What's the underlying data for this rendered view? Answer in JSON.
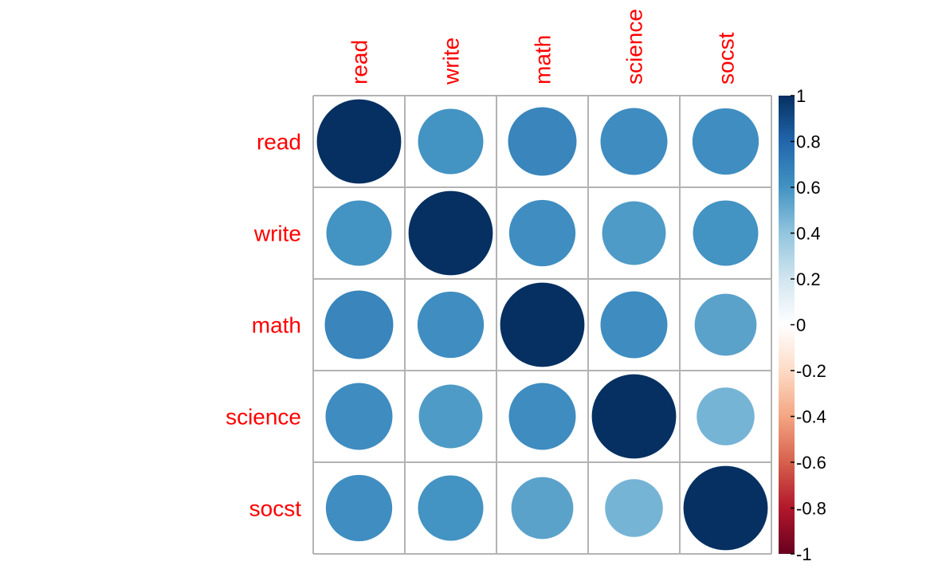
{
  "chart_data": {
    "type": "heatmap",
    "variables": [
      "read",
      "write",
      "math",
      "science",
      "socst"
    ],
    "matrix": [
      [
        1.0,
        0.6,
        0.66,
        0.63,
        0.62
      ],
      [
        0.6,
        1.0,
        0.62,
        0.57,
        0.6
      ],
      [
        0.66,
        0.62,
        1.0,
        0.63,
        0.54
      ],
      [
        0.63,
        0.57,
        0.63,
        1.0,
        0.47
      ],
      [
        0.62,
        0.6,
        0.54,
        0.47,
        1.0
      ]
    ],
    "colorbar": {
      "range": [
        -1,
        1
      ],
      "ticks": [
        1,
        0.8,
        0.6,
        0.4,
        0.2,
        0,
        -0.2,
        -0.4,
        -0.6,
        -0.8,
        -1
      ],
      "tick_labels": [
        "1",
        "0.8",
        "0.6",
        "0.4",
        "0.2",
        "0",
        "-0.2",
        "-0.4",
        "-0.6",
        "-0.8",
        "-1"
      ]
    },
    "label_color": "#ff0000",
    "grid_color": "#b3b3b3",
    "palette": [
      "#67001f",
      "#b2182b",
      "#d6604d",
      "#f4a582",
      "#fddbc7",
      "#ffffff",
      "#d1e5f0",
      "#92c5de",
      "#4393c3",
      "#2166ac",
      "#053061"
    ]
  }
}
